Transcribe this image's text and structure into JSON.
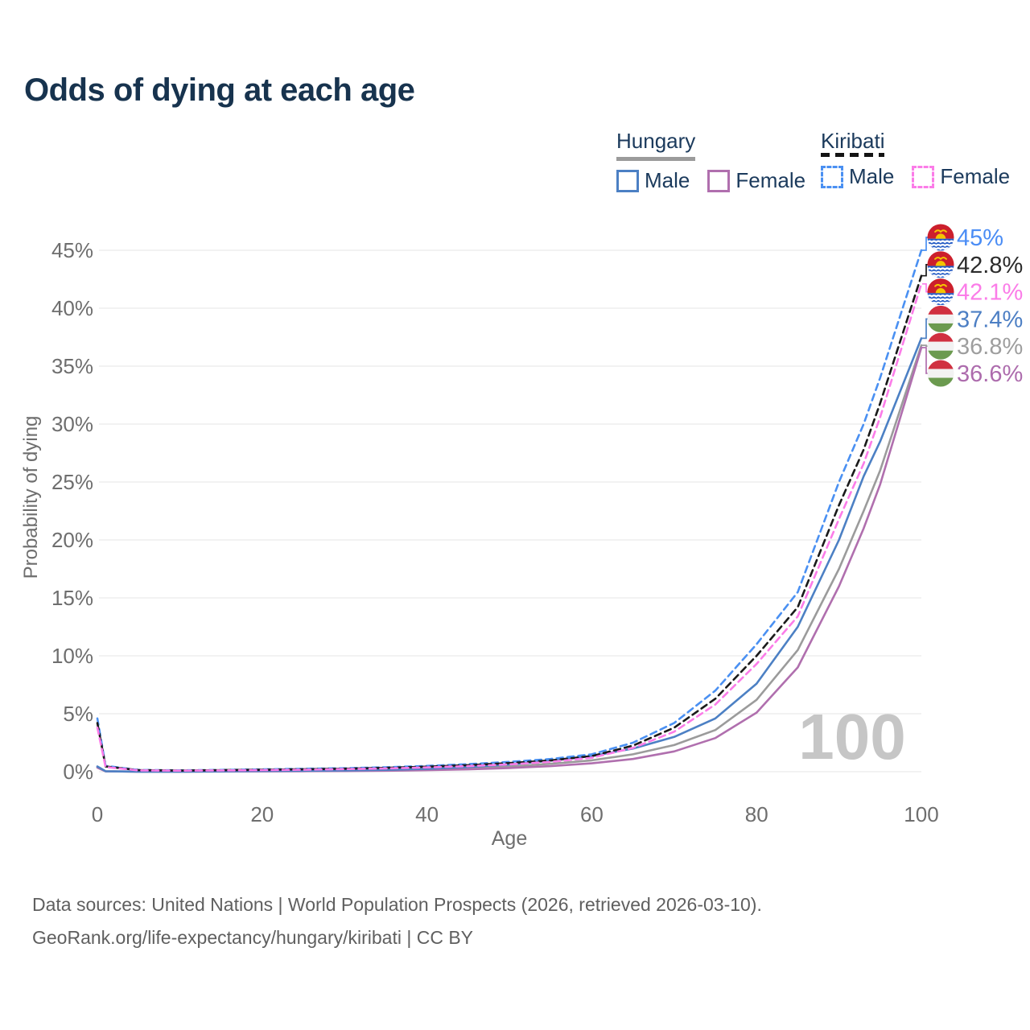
{
  "title": "Odds of dying at each age",
  "legend": {
    "hungary": {
      "label": "Hungary",
      "male": "Male",
      "female": "Female"
    },
    "kiribati": {
      "label": "Kiribati",
      "male": "Male",
      "female": "Female"
    }
  },
  "watermark_age": "100",
  "footer": {
    "line1": "Data sources: United Nations | World Population Prospects (2026, retrieved 2026-03-10).",
    "line2": "GeoRank.org/life-expectancy/hungary/kiribati | CC BY"
  },
  "chart_data": {
    "type": "line",
    "title": "Odds of dying at each age",
    "xlabel": "Age",
    "ylabel": "Probability of dying",
    "xlim": [
      0,
      100
    ],
    "ylim_percent": [
      0,
      45
    ],
    "x_ticks": [
      0,
      20,
      40,
      60,
      80,
      100
    ],
    "y_ticks_percent": [
      0,
      5,
      10,
      15,
      20,
      25,
      30,
      35,
      40,
      45
    ],
    "grid": "horizontal",
    "gridline_color": "#ebebeb",
    "tick_color": "#6e6e6e",
    "watermark_color": "#c6c6c6",
    "ages": [
      0,
      1,
      5,
      10,
      15,
      20,
      25,
      30,
      35,
      40,
      45,
      50,
      55,
      60,
      65,
      70,
      75,
      80,
      85,
      90,
      93,
      95,
      100
    ],
    "series": [
      {
        "name": "Hungary both sexes",
        "country": "Hungary",
        "group": "both sexes",
        "style": "solid",
        "color": "#9b9b9b",
        "label_color": "#9e9e9e",
        "flag": "hungary",
        "end_label": "36.8%",
        "values": [
          0.4,
          0.035,
          0.01,
          0.01,
          0.02,
          0.045,
          0.06,
          0.08,
          0.12,
          0.18,
          0.28,
          0.45,
          0.68,
          0.98,
          1.5,
          2.3,
          3.6,
          6.2,
          10.5,
          17.5,
          22.5,
          26.0,
          36.8
        ]
      },
      {
        "name": "Hungary female",
        "country": "Hungary",
        "group": "Female",
        "style": "solid",
        "color": "#b06fae",
        "label_color": "#ad6cad",
        "flag": "hungary",
        "end_label": "36.6%",
        "values": [
          0.35,
          0.03,
          0.008,
          0.008,
          0.015,
          0.03,
          0.04,
          0.055,
          0.085,
          0.13,
          0.2,
          0.32,
          0.48,
          0.72,
          1.1,
          1.75,
          2.9,
          5.1,
          9.0,
          16.0,
          21.0,
          24.8,
          36.6
        ]
      },
      {
        "name": "Hungary male",
        "country": "Hungary",
        "group": "Male",
        "style": "solid",
        "color": "#4c80c4",
        "label_color": "#4d7fc4",
        "flag": "hungary",
        "end_label": "37.4%",
        "values": [
          0.45,
          0.04,
          0.01,
          0.01,
          0.03,
          0.06,
          0.08,
          0.11,
          0.16,
          0.25,
          0.4,
          0.62,
          0.95,
          1.35,
          2.0,
          3.0,
          4.6,
          7.6,
          12.5,
          20.0,
          25.5,
          28.5,
          37.4
        ]
      },
      {
        "name": "Kiribati male",
        "country": "Kiribati",
        "group": "Male",
        "style": "dashed",
        "color": "#4a90f2",
        "label_color": "#4b8df5",
        "flag": "kiribati",
        "end_label": "45%",
        "values": [
          4.6,
          0.5,
          0.15,
          0.12,
          0.15,
          0.2,
          0.25,
          0.3,
          0.38,
          0.5,
          0.65,
          0.85,
          1.1,
          1.5,
          2.5,
          4.2,
          7.0,
          11.0,
          15.5,
          25.0,
          30.0,
          34.0,
          45.0
        ]
      },
      {
        "name": "Kiribati both sexes",
        "country": "Kiribati",
        "group": "both sexes",
        "style": "dashed",
        "color": "#1a1a1a",
        "label_color": "#2b2b2b",
        "flag": "kiribati",
        "end_label": "42.8%",
        "values": [
          4.2,
          0.45,
          0.13,
          0.1,
          0.13,
          0.17,
          0.21,
          0.26,
          0.33,
          0.43,
          0.56,
          0.74,
          0.97,
          1.35,
          2.25,
          3.8,
          6.3,
          10.0,
          14.2,
          23.0,
          27.8,
          31.8,
          42.8
        ]
      },
      {
        "name": "Kiribati female",
        "country": "Kiribati",
        "group": "Female",
        "style": "dashed",
        "color": "#fb7ce8",
        "label_color": "#fb7ce8",
        "flag": "kiribati",
        "end_label": "42.1%",
        "values": [
          3.8,
          0.4,
          0.11,
          0.09,
          0.11,
          0.14,
          0.17,
          0.22,
          0.28,
          0.37,
          0.48,
          0.63,
          0.85,
          1.2,
          2.05,
          3.45,
          5.8,
          9.3,
          13.4,
          21.8,
          26.6,
          30.6,
          42.1
        ]
      }
    ]
  }
}
